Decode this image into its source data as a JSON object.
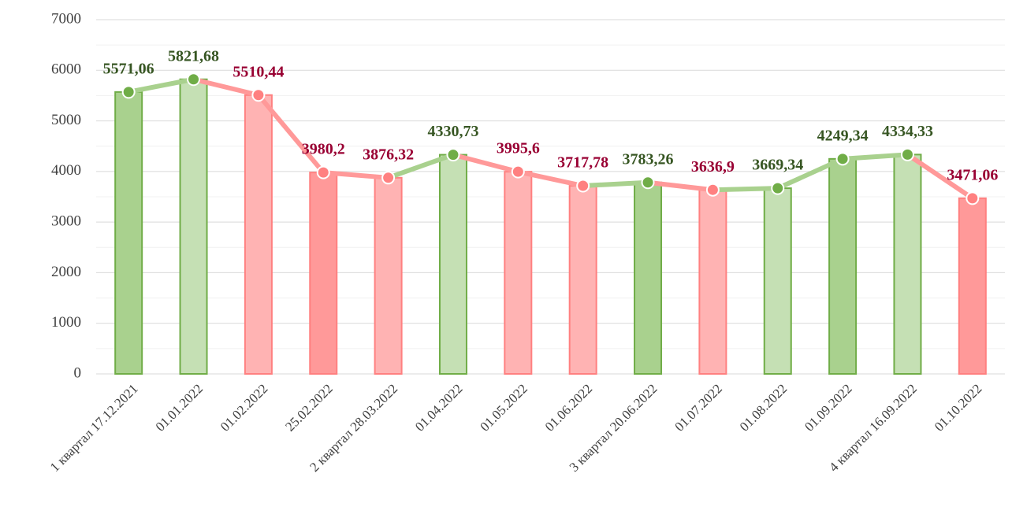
{
  "chart_data": {
    "type": "bar_line",
    "categories": [
      "1 квартал 17.12.2021",
      "01.01.2022",
      "01.02.2022",
      "25.02.2022",
      "2 квартал 28.03.2022",
      "01.04.2022",
      "01.05.2022",
      "01.06.2022",
      "3 квартал 20.06.2022",
      "01.07.2022",
      "01.08.2022",
      "01.09.2022",
      "4 квартал 16.09.2022",
      "01.10.2022"
    ],
    "values": [
      5571.06,
      5821.68,
      5510.44,
      3980.2,
      3876.32,
      4330.73,
      3995.6,
      3717.78,
      3783.26,
      3636.9,
      3669.34,
      4249.34,
      4334.33,
      3471.06
    ],
    "value_labels": [
      "5571,06",
      "5821,68",
      "5510,44",
      "3980,2",
      "3876,32",
      "4330,73",
      "3995,6",
      "3717,78",
      "3783,26",
      "3636,9",
      "3669,34",
      "4249,34",
      "4334,33",
      "3471,06"
    ],
    "bar_colors": [
      "#a9d18e",
      "#c5e0b4",
      "#ffb3b3",
      "#ff9999",
      "#ffb3b3",
      "#c5e0b4",
      "#ffb3b3",
      "#ffb3b3",
      "#a9d18e",
      "#ffb3b3",
      "#c5e0b4",
      "#a9d18e",
      "#c5e0b4",
      "#ff9999"
    ],
    "marker_colors": [
      "#70ad47",
      "#70ad47",
      "#ff8080",
      "#ff8080",
      "#ff8080",
      "#70ad47",
      "#ff8080",
      "#ff8080",
      "#70ad47",
      "#ff8080",
      "#70ad47",
      "#70ad47",
      "#70ad47",
      "#ff8080"
    ],
    "label_colors": [
      "#375623",
      "#375623",
      "#990033",
      "#990033",
      "#990033",
      "#375623",
      "#990033",
      "#990033",
      "#375623",
      "#990033",
      "#375623",
      "#375623",
      "#375623",
      "#990033"
    ],
    "ylim": [
      0,
      7000
    ],
    "yticks": [
      0,
      1000,
      2000,
      3000,
      4000,
      5000,
      6000,
      7000
    ],
    "minor_yticks": [
      500,
      1500,
      2500,
      3500,
      4500,
      5500,
      6500
    ],
    "grid": true
  }
}
